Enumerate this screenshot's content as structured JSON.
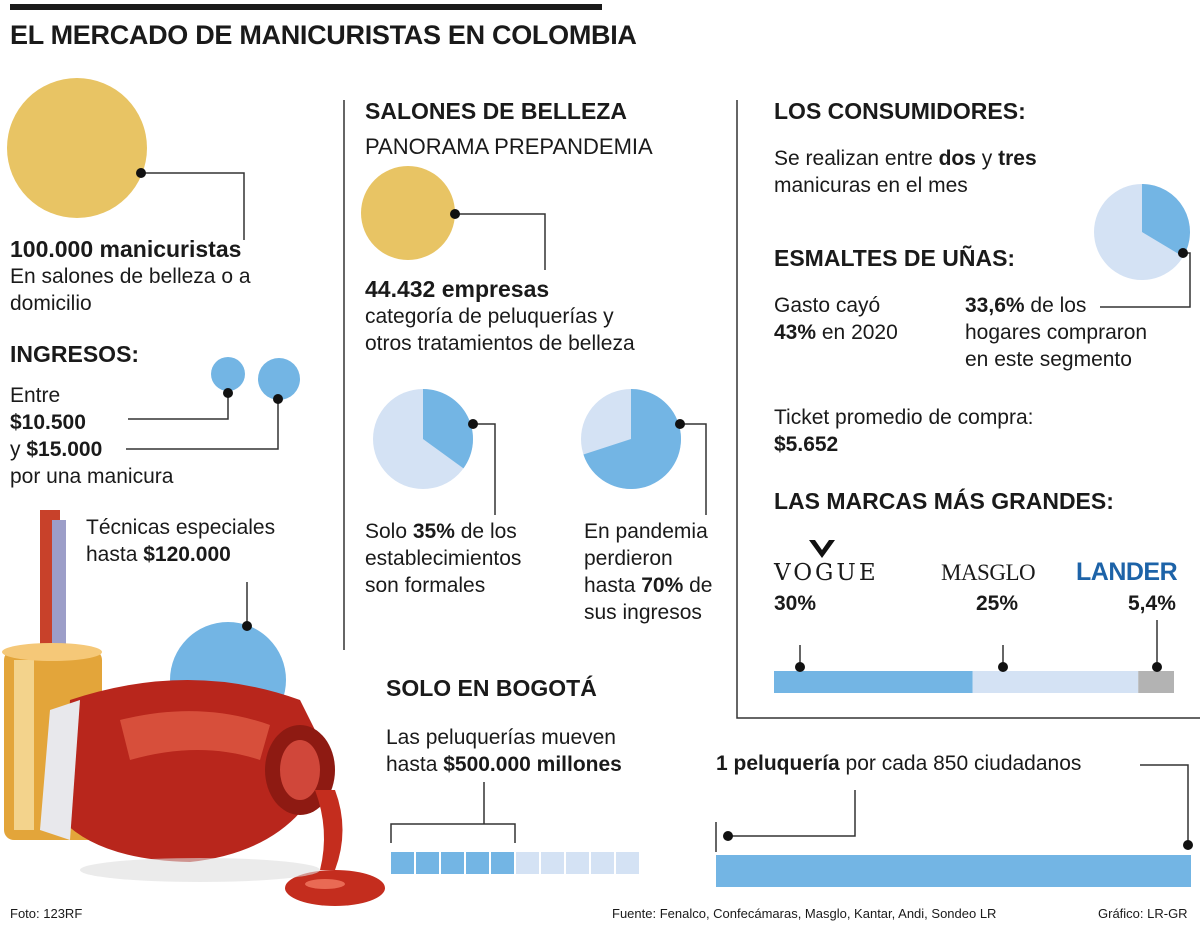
{
  "title": "EL MERCADO DE MANICURISTAS EN COLOMBIA",
  "colors": {
    "gold": "#e8c464",
    "blue": "#73b5e4",
    "lightblue": "#d4e2f4",
    "gray": "#b3b3b3",
    "lander_blue": "#1d63a8"
  },
  "manicuristas": {
    "number": "100.000 manicuristas",
    "text": "En salones de belleza o a domicilio"
  },
  "ingresos": {
    "heading": "INGRESOS:",
    "line1": "Entre",
    "value1": "$10.500",
    "line2_prefix": "y",
    "value2": "$15.000",
    "line3": "por una manicura"
  },
  "tecnicas": {
    "line1": "Técnicas especiales",
    "prefix": "hasta",
    "value": "$120.000"
  },
  "salones": {
    "heading": "SALONES DE BELLEZA",
    "subheading": "PANORAMA PREPANDEMIA",
    "empresas": "44.432 empresas",
    "empresas_text1": "categoría de peluquerías y",
    "empresas_text2": "otros tratamientos de belleza",
    "formales": {
      "pre": "Solo",
      "pct": "35%",
      "post": "de los",
      "line2": "establecimientos",
      "line3": "son formales",
      "fraction": 0.35
    },
    "pandemia": {
      "line1": "En pandemia",
      "line2": "perdieron",
      "pre": "hasta",
      "pct": "70%",
      "post": "de",
      "line4": "sus ingresos",
      "fraction": 0.7
    }
  },
  "bogota": {
    "heading": "SOLO EN BOGOTÁ",
    "line1": "Las peluquerías mueven",
    "prefix": "hasta",
    "value": "$500.000 millones",
    "filled": 5,
    "total": 10
  },
  "consumidores": {
    "heading": "LOS CONSUMIDORES:",
    "pre": "Se realizan entre",
    "b1": "dos",
    "mid": "y",
    "b2": "tres",
    "line2": "manicuras en el mes",
    "pie_fraction": 0.336
  },
  "esmaltes": {
    "heading": "ESMALTES DE UÑAS:",
    "gasto1": "Gasto cayó",
    "gasto_pct": "43%",
    "gasto2": "en 2020",
    "hogares_pct": "33,6%",
    "hogares1": "de los",
    "hogares2": "hogares compraron",
    "hogares3": "en este segmento"
  },
  "ticket": {
    "label": "Ticket promedio de compra:",
    "value": "$5.652"
  },
  "marcas": {
    "heading": "LAS MARCAS MÁS GRANDES:",
    "brands": [
      {
        "name": "VOGUE",
        "pct": "30%",
        "share": 30
      },
      {
        "name": "MASGLO",
        "pct": "25%",
        "share": 25
      },
      {
        "name": "LANDER",
        "pct": "5,4%",
        "share": 5.4
      }
    ]
  },
  "peluqueria": {
    "bold": "1 peluquería",
    "text": "por cada 850 ciudadanos"
  },
  "footer": {
    "photo": "Foto: 123RF",
    "source": "Fuente: Fenalco, Confecámaras, Masglo, Kantar, Andi, Sondeo LR",
    "graphic": "Gráfico: LR-GR"
  }
}
